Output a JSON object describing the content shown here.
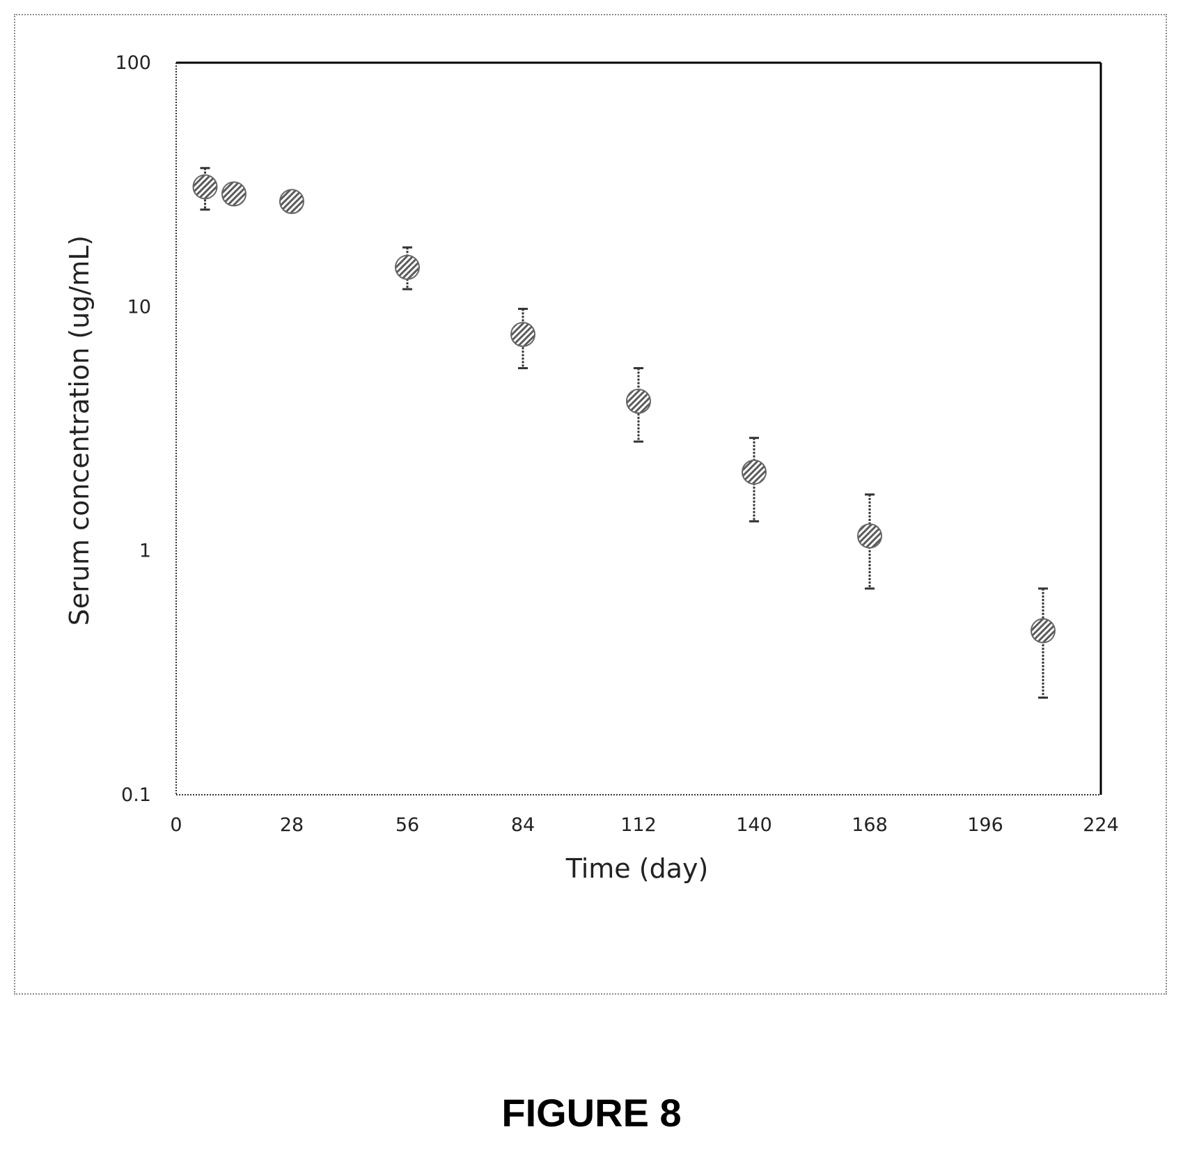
{
  "figure": {
    "caption": "FIGURE 8"
  },
  "chart_data": {
    "type": "scatter",
    "xlabel": "Time (day)",
    "ylabel": "Serum concentration (ug/mL)",
    "xlim": [
      0,
      224
    ],
    "ylim": [
      0.1,
      100
    ],
    "yscale": "log",
    "xticks": [
      0,
      28,
      56,
      84,
      112,
      140,
      168,
      196,
      224
    ],
    "xtick_labels": [
      "0",
      "28",
      "56",
      "84",
      "112",
      "140",
      "168",
      "196",
      "224"
    ],
    "yticks": [
      0.1,
      1,
      10,
      100
    ],
    "ytick_labels": [
      "0.1",
      "1",
      "10",
      "100"
    ],
    "grid": false,
    "legend": "none",
    "marker_color": "#555555",
    "series": [
      {
        "points": [
          {
            "x": 7,
            "y": 31,
            "err_low": 25,
            "err_high": 37
          },
          {
            "x": 14,
            "y": 29
          },
          {
            "x": 28,
            "y": 27
          },
          {
            "x": 56,
            "y": 14.5,
            "err_low": 11.8,
            "err_high": 17.5
          },
          {
            "x": 84,
            "y": 7.7,
            "err_low": 5.6,
            "err_high": 9.8
          },
          {
            "x": 112,
            "y": 4.1,
            "err_low": 2.8,
            "err_high": 5.6
          },
          {
            "x": 140,
            "y": 2.1,
            "err_low": 1.32,
            "err_high": 2.9
          },
          {
            "x": 168,
            "y": 1.15,
            "err_low": 0.7,
            "err_high": 1.7
          },
          {
            "x": 210,
            "y": 0.47,
            "err_low": 0.25,
            "err_high": 0.7
          }
        ]
      }
    ]
  }
}
